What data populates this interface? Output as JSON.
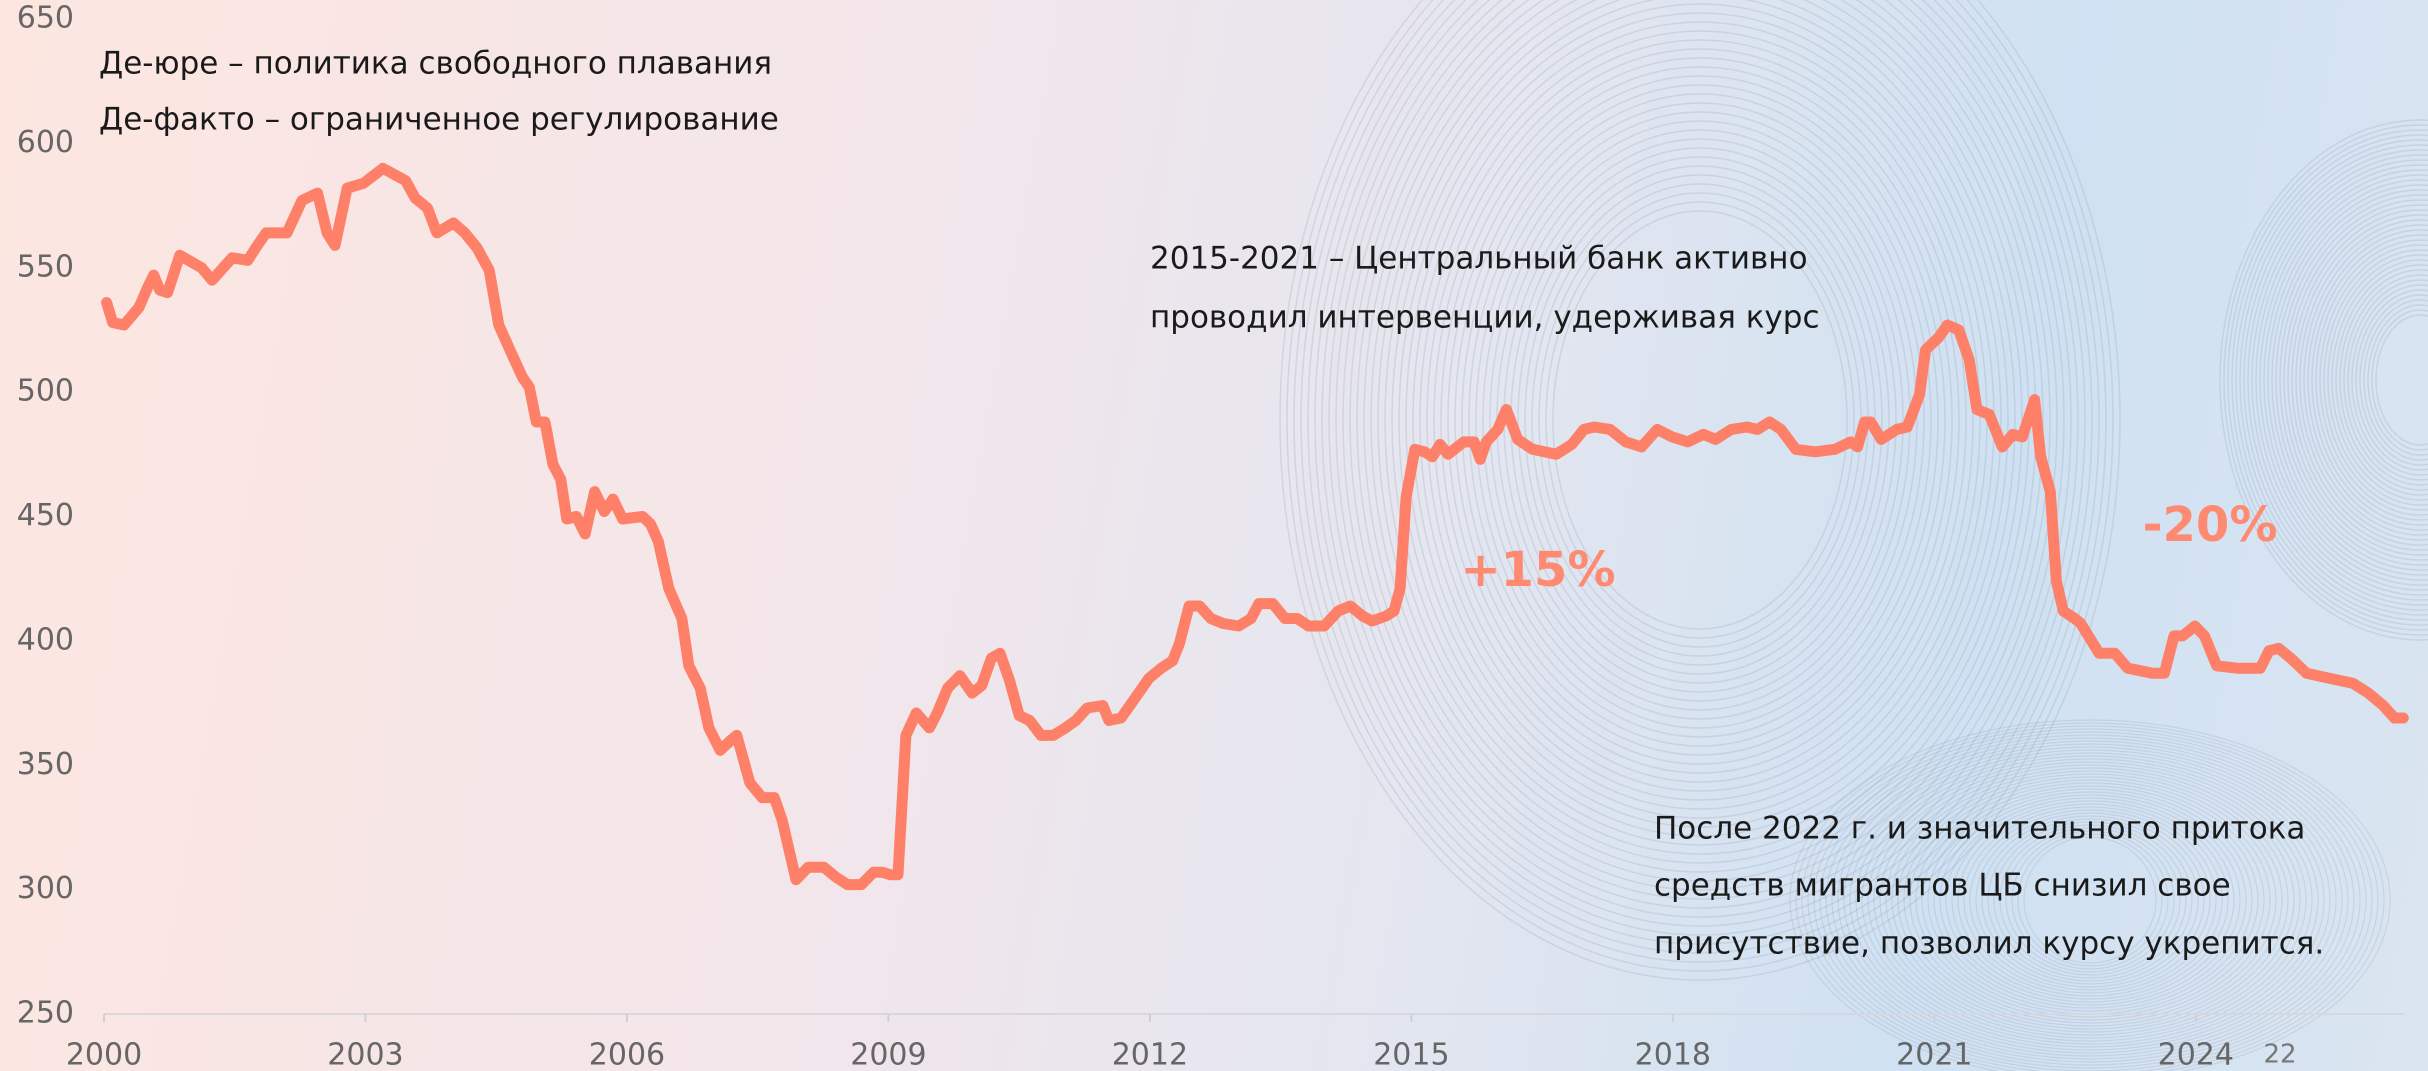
{
  "chart_data": {
    "type": "line",
    "color": "#ff8068",
    "xlim": [
      2000,
      2026.4
    ],
    "ylim": [
      250,
      650
    ],
    "xticks": [
      2000,
      2003,
      2006,
      2009,
      2012,
      2015,
      2018,
      2021,
      2024
    ],
    "yticks": [
      250,
      300,
      350,
      400,
      450,
      500,
      550,
      600,
      650
    ],
    "annotations": [
      "Де-юре – политика свободного плавания",
      "Де-факто – ограниченное регулирование",
      "2015-2021 – Центральный банк активно",
      "проводил интервенции, удерживая курс",
      "+15%",
      "-20%",
      "После 2022 г. и значительного притока",
      "средств мигрантов ЦБ снизил свое",
      "присутствие, позволил курсу укрепится."
    ],
    "x": [
      2000.03,
      2000.1,
      2000.23,
      2000.4,
      2000.5,
      2000.57,
      2000.64,
      2000.73,
      2000.87,
      2001.12,
      2001.24,
      2001.47,
      2001.65,
      2001.74,
      2001.86,
      2002.1,
      2002.27,
      2002.45,
      2002.56,
      2002.65,
      2002.79,
      2002.98,
      2003.2,
      2003.46,
      2003.57,
      2003.71,
      2003.82,
      2004.01,
      2004.14,
      2004.28,
      2004.42,
      2004.53,
      2004.67,
      2004.8,
      2004.88,
      2004.96,
      2005.06,
      2005.15,
      2005.24,
      2005.31,
      2005.42,
      2005.52,
      2005.63,
      2005.74,
      2005.84,
      2005.95,
      2006.18,
      2006.27,
      2006.36,
      2006.48,
      2006.63,
      2006.71,
      2006.84,
      2006.94,
      2007.07,
      2007.19,
      2007.26,
      2007.41,
      2007.55,
      2007.69,
      2007.78,
      2007.94,
      2008.08,
      2008.26,
      2008.4,
      2008.53,
      2008.69,
      2008.83,
      2008.93,
      2009.02,
      2009.11,
      2009.2,
      2009.32,
      2009.47,
      2009.56,
      2009.68,
      2009.82,
      2009.96,
      2010.07,
      2010.18,
      2010.28,
      2010.39,
      2010.5,
      2010.62,
      2010.75,
      2010.89,
      2011.03,
      2011.15,
      2011.28,
      2011.46,
      2011.53,
      2011.67,
      2011.85,
      2011.99,
      2012.13,
      2012.26,
      2012.34,
      2012.45,
      2012.57,
      2012.7,
      2012.84,
      2013.02,
      2013.16,
      2013.25,
      2013.41,
      2013.55,
      2013.69,
      2013.82,
      2014.0,
      2014.16,
      2014.3,
      2014.44,
      2014.55,
      2014.71,
      2014.8,
      2014.87,
      2014.94,
      2015.04,
      2015.15,
      2015.24,
      2015.33,
      2015.42,
      2015.6,
      2015.72,
      2015.79,
      2015.86,
      2015.99,
      2016.09,
      2016.22,
      2016.39,
      2016.66,
      2016.84,
      2016.98,
      2017.1,
      2017.28,
      2017.46,
      2017.64,
      2017.82,
      2017.99,
      2018.17,
      2018.35,
      2018.49,
      2018.67,
      2018.85,
      2018.97,
      2019.11,
      2019.24,
      2019.41,
      2019.63,
      2019.86,
      2020.04,
      2020.12,
      2020.2,
      2020.27,
      2020.39,
      2020.57,
      2020.69,
      2020.83,
      2020.9,
      2021.05,
      2021.15,
      2021.28,
      2021.4,
      2021.49,
      2021.63,
      2021.78,
      2021.9,
      2022.01,
      2022.15,
      2022.22,
      2022.33,
      2022.4,
      2022.48,
      2022.61,
      2022.68,
      2022.82,
      2022.89,
      2023.07,
      2023.22,
      2023.5,
      2023.64,
      2023.75,
      2023.85,
      2023.99,
      2024.1,
      2024.24,
      2024.47,
      2024.74,
      2024.84,
      2024.95,
      2025.09,
      2025.27,
      2025.53,
      2025.8,
      2025.98,
      2026.15,
      2026.28,
      2026.38
    ],
    "values": [
      536,
      528,
      527,
      534,
      542,
      547,
      541,
      540,
      555,
      550,
      545,
      554,
      553,
      558,
      564,
      564,
      577,
      580,
      564,
      559,
      582,
      584,
      590,
      585,
      578,
      574,
      564,
      568,
      564,
      558,
      549,
      527,
      516,
      506,
      502,
      488,
      488,
      471,
      465,
      449,
      450,
      443,
      460,
      452,
      457,
      449,
      450,
      447,
      440,
      421,
      409,
      390,
      381,
      365,
      356,
      360,
      362,
      343,
      337,
      337,
      328,
      304,
      309,
      309,
      305,
      302,
      302,
      307,
      307,
      306,
      306,
      362,
      371,
      365,
      371,
      381,
      386,
      379,
      382,
      393,
      395,
      384,
      370,
      368,
      362,
      362,
      365,
      368,
      373,
      374,
      368,
      369,
      378,
      385,
      389,
      392,
      399,
      414,
      414,
      409,
      407,
      406,
      409,
      415,
      415,
      409,
      409,
      406,
      406,
      412,
      414,
      410,
      408,
      410,
      412,
      421,
      458,
      477,
      476,
      474,
      479,
      475,
      480,
      480,
      473,
      480,
      485,
      493,
      481,
      477,
      475,
      479,
      485,
      486,
      485,
      480,
      478,
      485,
      482,
      480,
      483,
      481,
      485,
      486,
      485,
      488,
      485,
      477,
      476,
      477,
      480,
      478,
      488,
      488,
      481,
      485,
      486,
      499,
      517,
      522,
      527,
      525,
      513,
      493,
      491,
      478,
      483,
      482,
      497,
      474,
      460,
      424,
      412,
      409,
      407,
      399,
      395,
      395,
      389,
      387,
      387,
      402,
      402,
      406,
      402,
      390,
      389,
      389,
      396,
      397,
      393,
      387,
      385,
      383,
      379,
      374,
      369,
      369
    ]
  },
  "page_number": "22"
}
